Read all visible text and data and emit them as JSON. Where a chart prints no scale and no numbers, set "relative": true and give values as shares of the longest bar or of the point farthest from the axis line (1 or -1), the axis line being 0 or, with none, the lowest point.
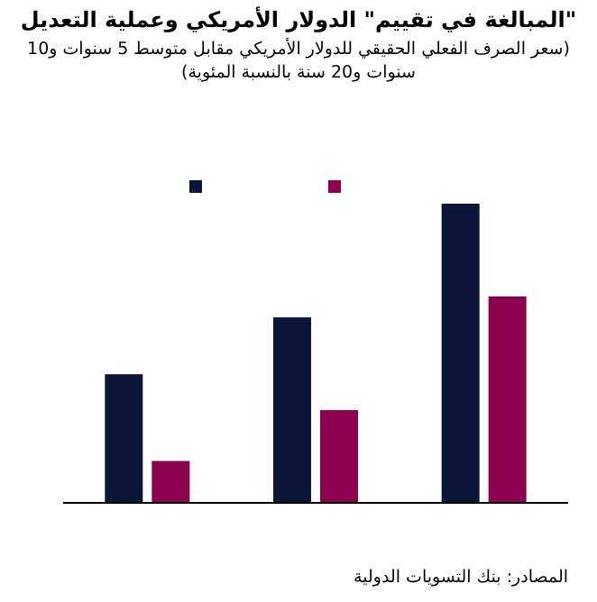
{
  "chart_data": {
    "type": "bar",
    "title": "\"المبالغة في تقييم\" الدولار الأمريكي وعملية التعديل",
    "subtitle": "(سعر الصرف الفعلي الحقيقي للدولار الأمريكي مقابل متوسط 5 سنوات و10 سنوات و20 سنة بالنسبة المئوية)",
    "annotations": [
      "المصادر: بنك التسويات الدولية"
    ],
    "relative": true,
    "categories": [
      null,
      null,
      null
    ],
    "series": [
      {
        "color": "#0b1538",
        "values": [
          0.43,
          0.62,
          1
        ]
      },
      {
        "color": "#8b004f",
        "values": [
          0.14,
          0.31,
          0.69
        ]
      }
    ]
  }
}
